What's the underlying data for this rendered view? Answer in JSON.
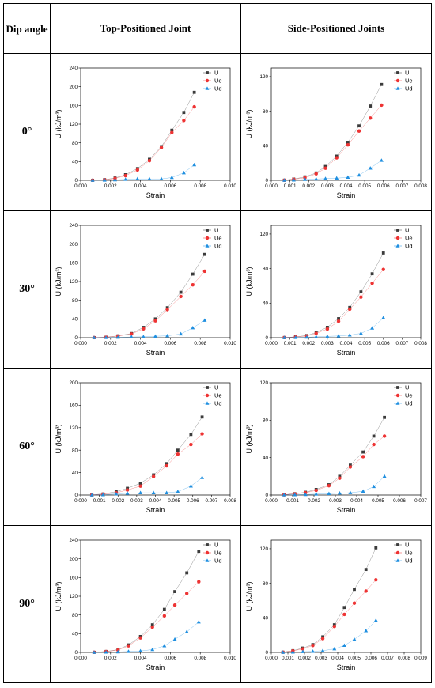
{
  "header": {
    "dip_label": "Dip angle",
    "top_label": "Top-Positioned Joint",
    "side_label": "Side-Positioned Joints"
  },
  "rows": [
    {
      "angle": "0°"
    },
    {
      "angle": "30°"
    },
    {
      "angle": "60°"
    },
    {
      "angle": "90°"
    }
  ],
  "colors": {
    "U": "#3b3b3b",
    "Ue": "#ee3333",
    "Ud": "#1f8fe0"
  },
  "chart_data": [
    {
      "id": "0-top",
      "type": "line",
      "xlabel": "Strain",
      "ylabel": "U (kJ/m³)",
      "xlim": [
        0,
        0.01
      ],
      "ylim": [
        0,
        240
      ],
      "xticks": [
        "0.000",
        "0.002",
        "0.004",
        "0.006",
        "0.008",
        "0.010"
      ],
      "yticks": [
        "0",
        "40",
        "80",
        "120",
        "160",
        "200",
        "240"
      ],
      "legend": [
        "U",
        "Ue",
        "Ud"
      ],
      "x": [
        0.0008,
        0.0016,
        0.0023,
        0.003,
        0.0038,
        0.0046,
        0.0054,
        0.0061,
        0.0069,
        0.0076
      ],
      "series": [
        {
          "name": "U",
          "values": [
            0.2,
            1.5,
            5,
            12,
            25,
            45,
            72,
            107,
            145,
            188
          ]
        },
        {
          "name": "Ue",
          "values": [
            0.2,
            1.2,
            4,
            10,
            22,
            42,
            70,
            102,
            128,
            157
          ]
        },
        {
          "name": "Ud",
          "values": [
            0.1,
            0.3,
            1,
            2,
            3,
            3,
            3,
            6,
            16,
            33
          ]
        }
      ]
    },
    {
      "id": "0-side",
      "type": "line",
      "xlabel": "Strain",
      "ylabel": "U (kJ/m³)",
      "xlim": [
        0,
        0.008
      ],
      "ylim": [
        0,
        130
      ],
      "xticks": [
        "0.000",
        "0.001",
        "0.002",
        "0.003",
        "0.004",
        "0.005",
        "0.006",
        "0.007",
        "0.008"
      ],
      "yticks": [
        "0",
        "40",
        "80",
        "120"
      ],
      "legend": [
        "U",
        "Ue",
        "Ud"
      ],
      "x": [
        0.0007,
        0.0012,
        0.0018,
        0.0024,
        0.0029,
        0.0035,
        0.0041,
        0.0047,
        0.0053,
        0.0059
      ],
      "series": [
        {
          "name": "U",
          "values": [
            0.2,
            1.5,
            4,
            8.5,
            16,
            28,
            44,
            63,
            86,
            111
          ]
        },
        {
          "name": "Ue",
          "values": [
            0.2,
            1.2,
            3,
            7.5,
            14,
            26,
            41,
            57,
            72,
            87
          ]
        },
        {
          "name": "Ud",
          "values": [
            0.1,
            0.3,
            1,
            1.5,
            2,
            2.5,
            3.5,
            6,
            14,
            23
          ]
        }
      ]
    },
    {
      "id": "30-top",
      "type": "line",
      "xlabel": "Strain",
      "ylabel": "U (kJ/m³)",
      "xlim": [
        0,
        0.01
      ],
      "ylim": [
        0,
        240
      ],
      "xticks": [
        "0.000",
        "0.002",
        "0.004",
        "0.006",
        "0.008",
        "0.010"
      ],
      "yticks": [
        "0",
        "40",
        "80",
        "120",
        "160",
        "200",
        "240"
      ],
      "legend": [
        "U",
        "Ue",
        "Ud"
      ],
      "x": [
        0.0009,
        0.0017,
        0.0025,
        0.0034,
        0.0042,
        0.005,
        0.0058,
        0.0067,
        0.0075,
        0.0083
      ],
      "series": [
        {
          "name": "U",
          "values": [
            0.2,
            1,
            4,
            9,
            22,
            40,
            64,
            97,
            136,
            178
          ]
        },
        {
          "name": "Ue",
          "values": [
            0.2,
            0.9,
            3.5,
            8,
            19,
            36,
            60,
            88,
            113,
            142
          ]
        },
        {
          "name": "Ud",
          "values": [
            0.1,
            0.3,
            0.8,
            1.5,
            2,
            3,
            4,
            8,
            21,
            37
          ]
        }
      ]
    },
    {
      "id": "30-side",
      "type": "line",
      "xlabel": "Strain",
      "ylabel": "U (kJ/m³)",
      "xlim": [
        0,
        0.008
      ],
      "ylim": [
        0,
        130
      ],
      "xticks": [
        "0.000",
        "0.001",
        "0.002",
        "0.003",
        "0.004",
        "0.005",
        "0.006",
        "0.007",
        "0.008"
      ],
      "yticks": [
        "0",
        "40",
        "80",
        "120"
      ],
      "legend": [
        "U",
        "Ue",
        "Ud"
      ],
      "x": [
        0.0007,
        0.0013,
        0.0019,
        0.0024,
        0.003,
        0.0036,
        0.0042,
        0.0048,
        0.0054,
        0.006
      ],
      "series": [
        {
          "name": "U",
          "values": [
            0.2,
            1,
            2.5,
            6,
            12,
            22,
            35,
            53,
            74,
            98
          ]
        },
        {
          "name": "Ue",
          "values": [
            0.2,
            0.9,
            2,
            5,
            10,
            19,
            33,
            47,
            63,
            79
          ]
        },
        {
          "name": "Ud",
          "values": [
            0.1,
            0.2,
            0.5,
            1,
            1.5,
            2,
            3,
            5,
            11,
            23
          ]
        }
      ]
    },
    {
      "id": "60-top",
      "type": "line",
      "xlabel": "Strain",
      "ylabel": "U (kJ/m³)",
      "xlim": [
        0,
        0.008
      ],
      "ylim": [
        0,
        200
      ],
      "xticks": [
        "0.000",
        "0.001",
        "0.002",
        "0.003",
        "0.004",
        "0.005",
        "0.006",
        "0.007",
        "0.008"
      ],
      "yticks": [
        "0",
        "40",
        "80",
        "120",
        "160",
        "200"
      ],
      "legend": [
        "U",
        "Ue",
        "Ud"
      ],
      "x": [
        0.0006,
        0.0012,
        0.0019,
        0.0025,
        0.0032,
        0.0039,
        0.0046,
        0.0052,
        0.0059,
        0.0065
      ],
      "series": [
        {
          "name": "U",
          "values": [
            0.3,
            2,
            6,
            12,
            21,
            36,
            56,
            80,
            108,
            139
          ]
        },
        {
          "name": "Ue",
          "values": [
            0.3,
            1.5,
            4,
            9,
            16,
            33,
            52,
            73,
            90,
            109
          ]
        },
        {
          "name": "Ud",
          "values": [
            0.1,
            0.5,
            2,
            3,
            4,
            4,
            4,
            6,
            16,
            31
          ]
        }
      ]
    },
    {
      "id": "60-side",
      "type": "line",
      "xlabel": "Strain",
      "ylabel": "U (kJ/m³)",
      "xlim": [
        0,
        0.007
      ],
      "ylim": [
        0,
        120
      ],
      "xticks": [
        "0.000",
        "0.001",
        "0.002",
        "0.003",
        "0.004",
        "0.005",
        "0.006",
        "0.007"
      ],
      "yticks": [
        "0",
        "40",
        "80",
        "120"
      ],
      "legend": [
        "U",
        "Ue",
        "Ud"
      ],
      "x": [
        0.0006,
        0.0011,
        0.0016,
        0.0021,
        0.0027,
        0.0032,
        0.0037,
        0.0043,
        0.0048,
        0.0053
      ],
      "series": [
        {
          "name": "U",
          "values": [
            0.3,
            1.5,
            3,
            6,
            11,
            20,
            32,
            46,
            63,
            83
          ]
        },
        {
          "name": "Ue",
          "values": [
            0.3,
            1.2,
            2.5,
            5,
            10,
            18,
            30,
            41,
            54,
            63
          ]
        },
        {
          "name": "Ud",
          "values": [
            0.1,
            0.3,
            0.5,
            1,
            1.5,
            2,
            2.5,
            4,
            9,
            20
          ]
        }
      ]
    },
    {
      "id": "90-top",
      "type": "line",
      "xlabel": "Strain",
      "ylabel": "U (kJ/m³)",
      "xlim": [
        0,
        0.01
      ],
      "ylim": [
        0,
        240
      ],
      "xticks": [
        "0.000",
        "0.002",
        "0.004",
        "0.006",
        "0.008",
        "0.010"
      ],
      "yticks": [
        "0",
        "40",
        "80",
        "120",
        "160",
        "200",
        "240"
      ],
      "legend": [
        "U",
        "Ue",
        "Ud"
      ],
      "x": [
        0.0009,
        0.0017,
        0.0025,
        0.0032,
        0.004,
        0.0048,
        0.0056,
        0.0063,
        0.0071,
        0.0079
      ],
      "series": [
        {
          "name": "U",
          "values": [
            0.3,
            2,
            6,
            16,
            34,
            59,
            92,
            130,
            170,
            216
          ]
        },
        {
          "name": "Ue",
          "values": [
            0.3,
            1.8,
            5,
            14,
            31,
            54,
            78,
            101,
            126,
            151
          ]
        },
        {
          "name": "Ud",
          "values": [
            0.1,
            0.5,
            1,
            2,
            3,
            6,
            14,
            28,
            44,
            65
          ]
        }
      ]
    },
    {
      "id": "90-side",
      "type": "line",
      "xlabel": "Strain",
      "ylabel": "U (kJ/m³)",
      "xlim": [
        0,
        0.009
      ],
      "ylim": [
        0,
        130
      ],
      "xticks": [
        "0.000",
        "0.001",
        "0.002",
        "0.003",
        "0.004",
        "0.005",
        "0.006",
        "0.007",
        "0.008",
        "0.009"
      ],
      "yticks": [
        "0",
        "40",
        "80",
        "120"
      ],
      "legend": [
        "U",
        "Ue",
        "Ud"
      ],
      "x": [
        0.0007,
        0.0013,
        0.0019,
        0.0025,
        0.0031,
        0.0038,
        0.0044,
        0.005,
        0.0057,
        0.0063
      ],
      "series": [
        {
          "name": "U",
          "values": [
            0.3,
            2,
            5,
            9,
            18,
            32,
            52,
            73,
            96,
            121
          ]
        },
        {
          "name": "Ue",
          "values": [
            0.3,
            1.8,
            4,
            8,
            16,
            30,
            44,
            57,
            71,
            84
          ]
        },
        {
          "name": "Ud",
          "values": [
            0.1,
            0.3,
            0.8,
            1.2,
            2,
            4,
            8,
            15,
            25,
            37
          ]
        }
      ]
    }
  ]
}
